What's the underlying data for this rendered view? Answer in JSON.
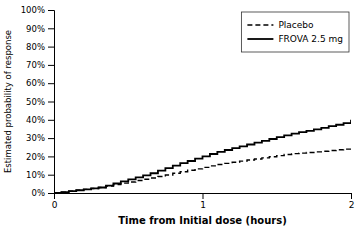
{
  "chart_data": {
    "type": "step",
    "xlabel": "Time from Initial dose (hours)",
    "ylabel": "Estimated probability of response",
    "x": [
      0,
      0.05,
      0.1,
      0.15,
      0.2,
      0.25,
      0.3,
      0.35,
      0.4,
      0.45,
      0.5,
      0.55,
      0.6,
      0.65,
      0.7,
      0.75,
      0.8,
      0.85,
      0.9,
      0.95,
      1.0,
      1.05,
      1.1,
      1.15,
      1.2,
      1.25,
      1.3,
      1.35,
      1.4,
      1.45,
      1.5,
      1.55,
      1.6,
      1.65,
      1.7,
      1.75,
      1.8,
      1.85,
      1.9,
      1.95,
      2.0
    ],
    "series": [
      {
        "name": "Placebo",
        "color": "#000000",
        "line_style": "dashed",
        "values": [
          0.0,
          0.005,
          0.01,
          0.015,
          0.02,
          0.025,
          0.03,
          0.038,
          0.046,
          0.054,
          0.06,
          0.068,
          0.075,
          0.082,
          0.09,
          0.098,
          0.108,
          0.116,
          0.124,
          0.132,
          0.14,
          0.148,
          0.156,
          0.162,
          0.168,
          0.174,
          0.18,
          0.186,
          0.192,
          0.198,
          0.204,
          0.21,
          0.215,
          0.218,
          0.221,
          0.225,
          0.228,
          0.232,
          0.236,
          0.24,
          0.25
        ]
      },
      {
        "name": "FROVA 2.5 mg",
        "color": "#000000",
        "line_style": "solid",
        "values": [
          0.0,
          0.005,
          0.01,
          0.015,
          0.02,
          0.025,
          0.03,
          0.04,
          0.052,
          0.064,
          0.074,
          0.085,
          0.096,
          0.108,
          0.122,
          0.136,
          0.15,
          0.163,
          0.175,
          0.188,
          0.2,
          0.213,
          0.225,
          0.235,
          0.245,
          0.255,
          0.265,
          0.275,
          0.285,
          0.295,
          0.305,
          0.315,
          0.325,
          0.333,
          0.34,
          0.348,
          0.356,
          0.365,
          0.373,
          0.382,
          0.4
        ]
      }
    ],
    "xlim": [
      0,
      2
    ],
    "ylim": [
      0,
      1.0
    ],
    "xticks": [
      0,
      1,
      2
    ],
    "yticks": [
      {
        "value": 0.0,
        "label": "0%"
      },
      {
        "value": 0.1,
        "label": "10%"
      },
      {
        "value": 0.2,
        "label": "20%"
      },
      {
        "value": 0.3,
        "label": "30%"
      },
      {
        "value": 0.4,
        "label": "40%"
      },
      {
        "value": 0.5,
        "label": "50%"
      },
      {
        "value": 0.6,
        "label": "60%"
      },
      {
        "value": 0.7,
        "label": "70%"
      },
      {
        "value": 0.8,
        "label": "80%"
      },
      {
        "value": 0.9,
        "label": "90%"
      },
      {
        "value": 1.0,
        "label": "100%"
      }
    ],
    "legend": "upper right"
  }
}
